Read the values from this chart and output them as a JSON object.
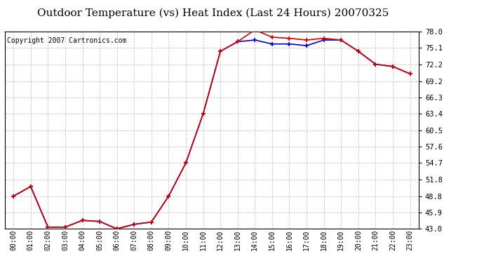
{
  "title": "Outdoor Temperature (vs) Heat Index (Last 24 Hours) 20070325",
  "copyright": "Copyright 2007 Cartronics.com",
  "x_labels": [
    "00:00",
    "01:00",
    "02:00",
    "03:00",
    "04:00",
    "05:00",
    "06:00",
    "07:00",
    "08:00",
    "09:00",
    "10:00",
    "11:00",
    "12:00",
    "13:00",
    "14:00",
    "15:00",
    "16:00",
    "17:00",
    "18:00",
    "19:00",
    "20:00",
    "21:00",
    "22:00",
    "23:00"
  ],
  "temp_data": [
    48.8,
    50.5,
    43.3,
    43.3,
    44.5,
    44.3,
    43.0,
    43.8,
    44.2,
    48.8,
    54.7,
    63.4,
    74.5,
    76.2,
    78.3,
    77.0,
    76.8,
    76.5,
    76.8,
    76.5,
    74.5,
    72.2,
    71.8,
    70.5
  ],
  "heat_data": [
    48.8,
    50.5,
    43.3,
    43.3,
    44.5,
    44.3,
    43.0,
    43.8,
    44.2,
    48.8,
    54.7,
    63.4,
    74.5,
    76.2,
    76.5,
    75.8,
    75.8,
    75.5,
    76.5,
    76.5,
    74.5,
    72.2,
    71.8,
    70.5
  ],
  "ylim": [
    43.0,
    78.0
  ],
  "yticks": [
    43.0,
    45.9,
    48.8,
    51.8,
    54.7,
    57.6,
    60.5,
    63.4,
    66.3,
    69.2,
    72.2,
    75.1,
    78.0
  ],
  "temp_color": "#cc0000",
  "heat_color": "#0000cc",
  "bg_color": "#ffffff",
  "grid_color": "#c0c0c0",
  "title_fontsize": 11,
  "copyright_fontsize": 7,
  "marker": "+",
  "marker_size": 5,
  "linewidth": 1.2
}
